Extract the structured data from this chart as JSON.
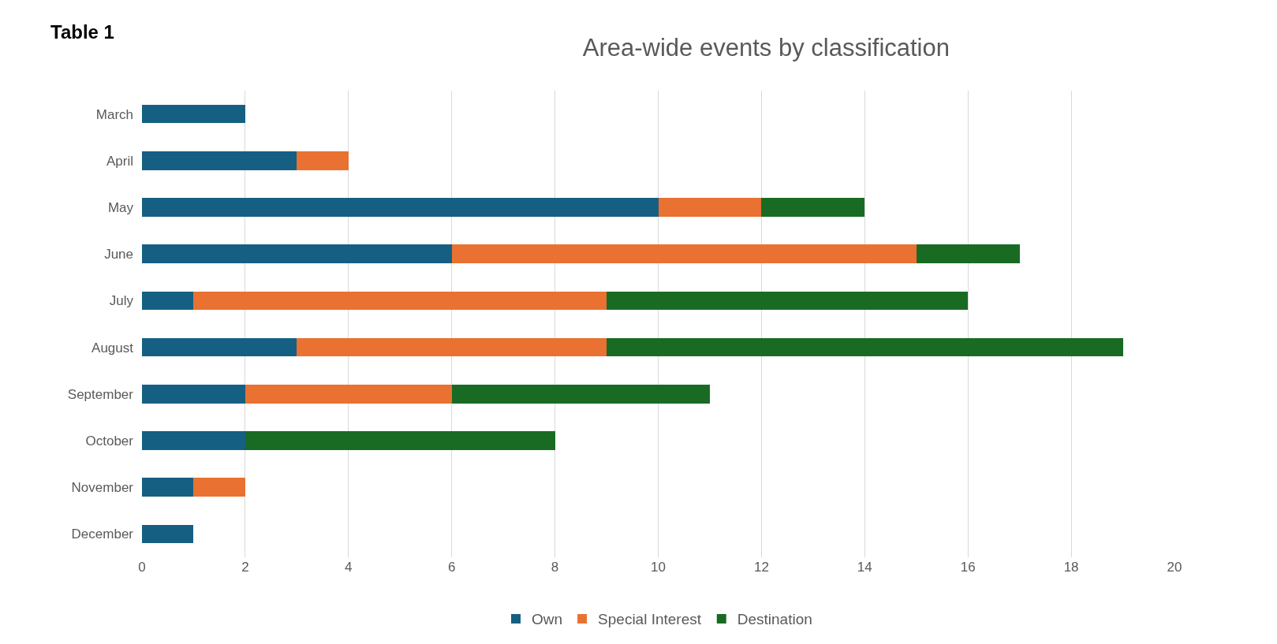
{
  "chart_data": {
    "type": "bar",
    "orientation": "horizontal",
    "stacked": true,
    "title": "Area-wide events by classification",
    "annotations": [
      "Table 1"
    ],
    "categories": [
      "March",
      "April",
      "May",
      "June",
      "July",
      "August",
      "September",
      "October",
      "November",
      "December"
    ],
    "series": [
      {
        "name": "Own",
        "color": "#156082",
        "values": [
          2,
          3,
          10,
          6,
          1,
          3,
          2,
          2,
          1,
          1
        ]
      },
      {
        "name": "Special Interest",
        "color": "#e97132",
        "values": [
          0,
          1,
          2,
          9,
          8,
          6,
          4,
          0,
          1,
          0
        ]
      },
      {
        "name": "Destination",
        "color": "#196b24",
        "values": [
          0,
          0,
          2,
          2,
          7,
          10,
          5,
          6,
          0,
          0
        ]
      }
    ],
    "xlim": [
      0,
      20
    ],
    "xticks": [
      0,
      2,
      4,
      6,
      8,
      10,
      12,
      14,
      16,
      18,
      20
    ],
    "grid": "x",
    "legend": "bottom"
  }
}
